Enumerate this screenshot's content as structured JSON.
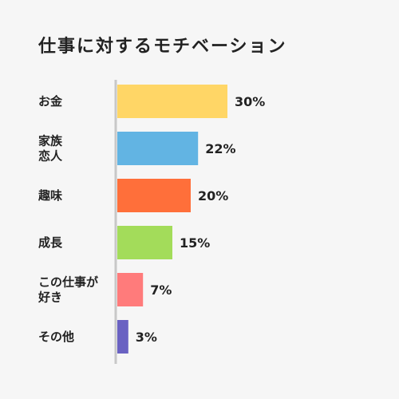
{
  "chart_data": {
    "type": "bar",
    "orientation": "horizontal",
    "title": "仕事に対するモチベーション",
    "categories": [
      "お金",
      "家族\n恋人",
      "趣味",
      "成長",
      "この仕事が\n好き",
      "その他"
    ],
    "values": [
      30,
      22,
      20,
      15,
      7,
      3
    ],
    "value_labels": [
      "30%",
      "22%",
      "20%",
      "15%",
      "7%",
      "3%"
    ],
    "unit": "%",
    "colors": [
      "#ffd666",
      "#62b4e3",
      "#ff6f3a",
      "#a3dc5a",
      "#ff7b7b",
      "#6a62c2"
    ],
    "axis_color": "#c8c8c8",
    "xlim": [
      0,
      30
    ],
    "grid": false,
    "legend": "none"
  }
}
